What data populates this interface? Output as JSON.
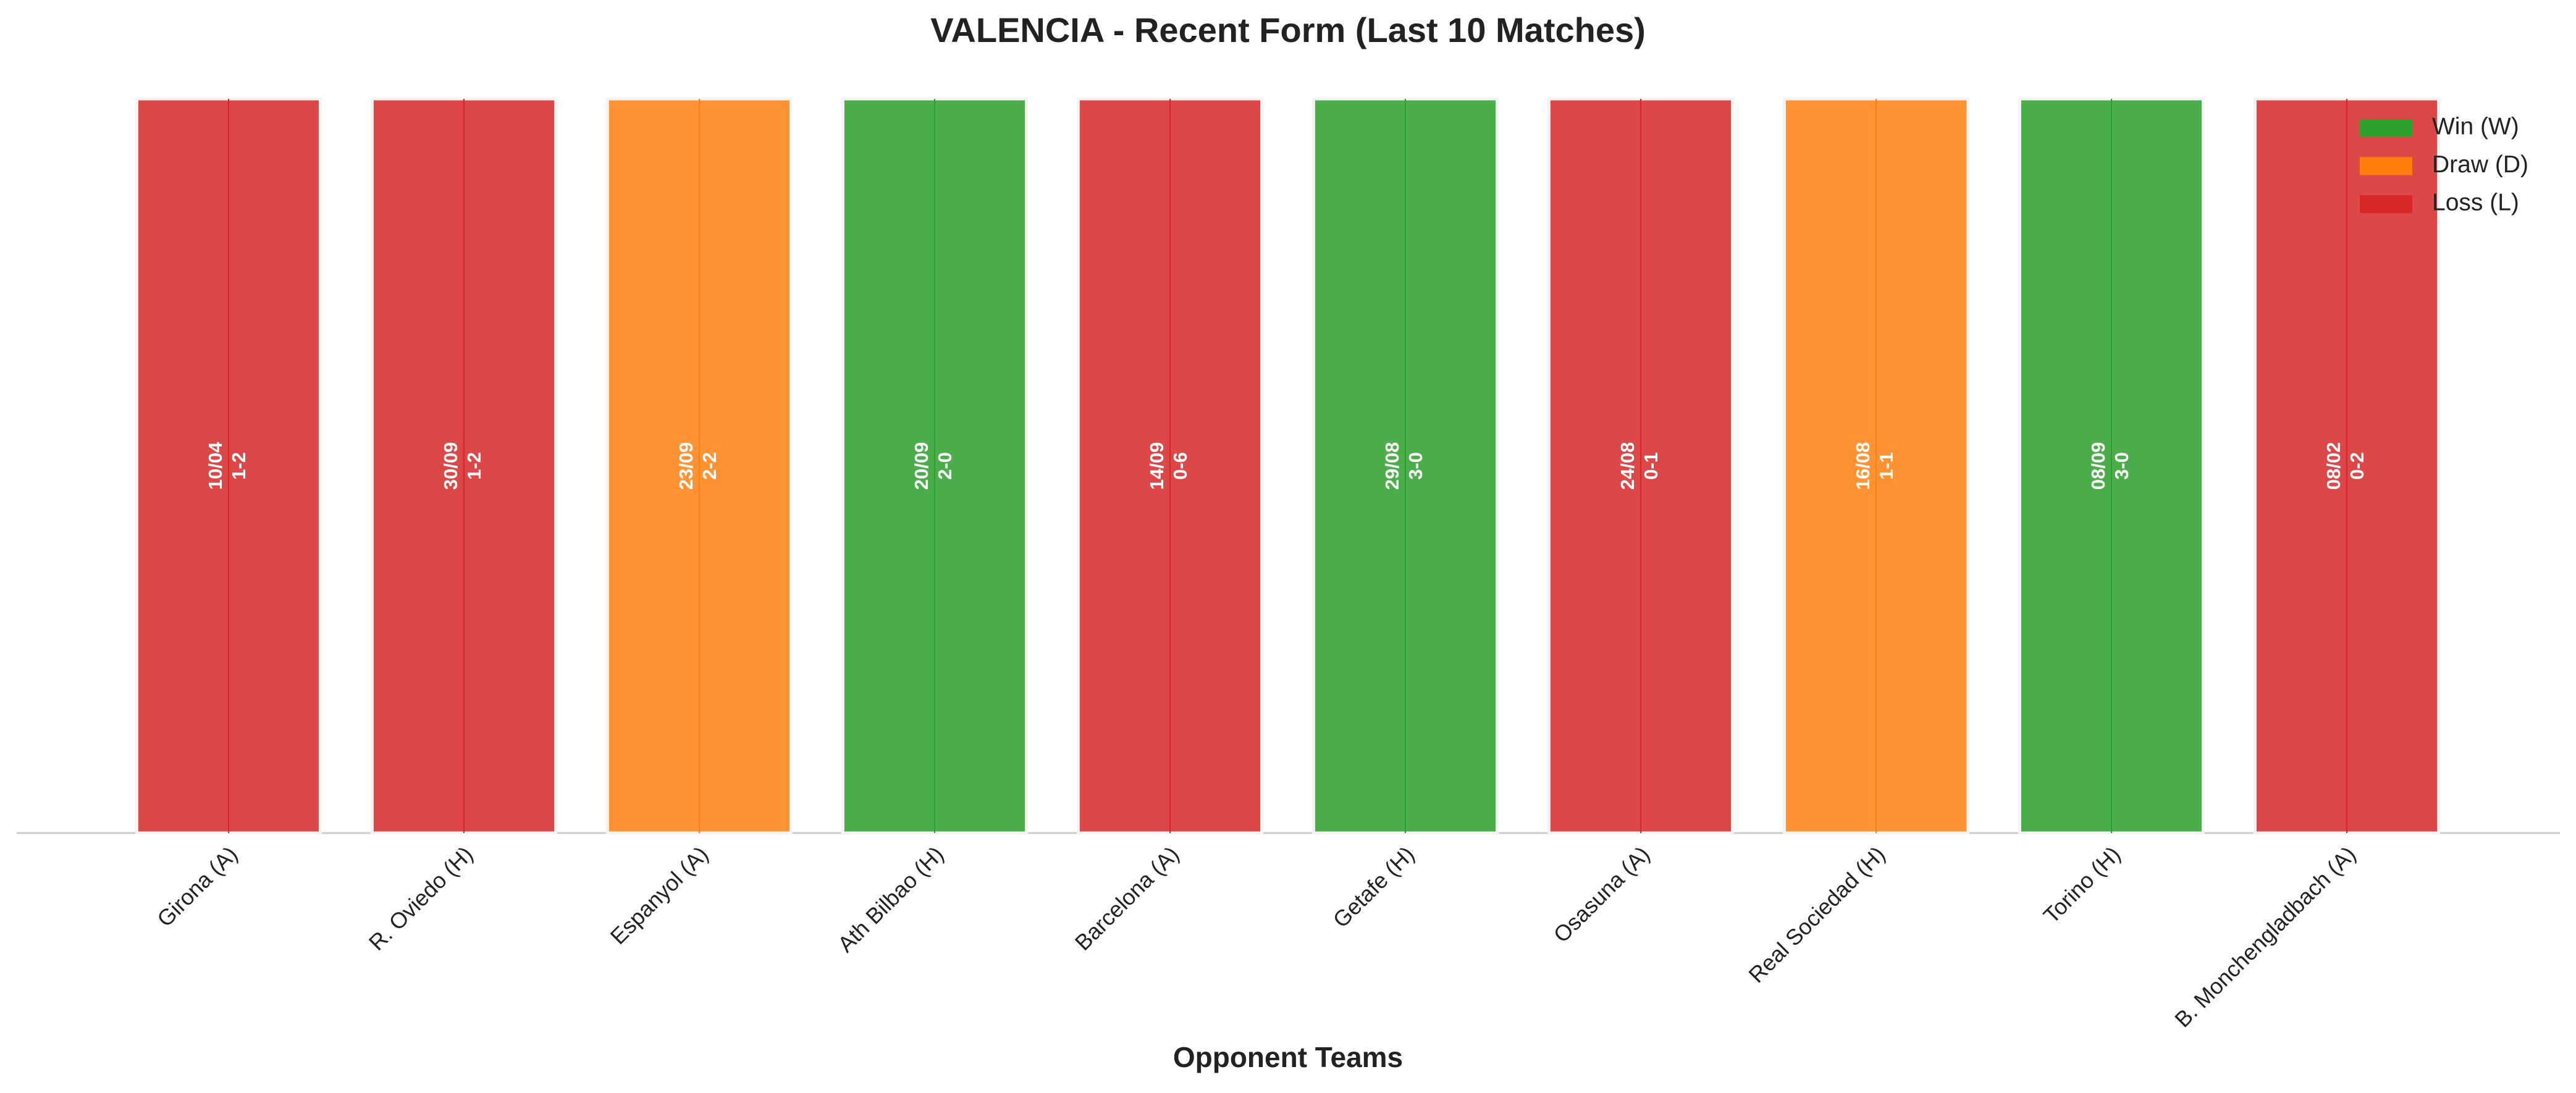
{
  "chart_data": {
    "type": "bar",
    "title": "VALENCIA - Recent Form (Last 10 Matches)",
    "x_label": "Opponent Teams",
    "categories": [
      "Girona (A)",
      "R. Oviedo (H)",
      "Espanyol (A)",
      "Ath Bilbao (H)",
      "Barcelona (A)",
      "Getafe (H)",
      "Osasuna (A)",
      "Real Sociedad (H)",
      "Torino (H)",
      "B. Monchengladbach (A)"
    ],
    "dates": [
      "10/04",
      "30/09",
      "23/09",
      "20/09",
      "14/09",
      "29/08",
      "24/08",
      "16/08",
      "08/09",
      "08/02"
    ],
    "scores": [
      "1-2",
      "1-2",
      "2-2",
      "2-0",
      "0-6",
      "3-0",
      "0-1",
      "1-1",
      "3-0",
      "0-2"
    ],
    "series": [
      {
        "name": "Win (W)",
        "color": "#2ca02c",
        "values": [
          null,
          null,
          null,
          1,
          null,
          1,
          null,
          null,
          1,
          null
        ]
      },
      {
        "name": "Draw (D)",
        "color": "#ff7f0e",
        "values": [
          null,
          null,
          1,
          null,
          null,
          null,
          null,
          1,
          null,
          null
        ]
      },
      {
        "name": "Loss (L)",
        "color": "#d62728",
        "values": [
          1,
          1,
          null,
          null,
          1,
          null,
          1,
          null,
          null,
          1
        ]
      }
    ],
    "ylim": [
      0,
      1
    ],
    "legend": "upper right"
  }
}
